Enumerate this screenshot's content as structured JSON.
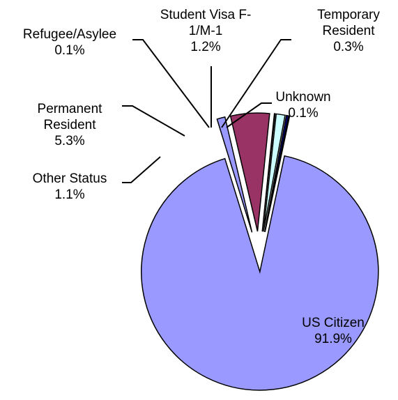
{
  "chart_data": {
    "type": "pie",
    "categories": [
      "US Citizen",
      "Other Status",
      "Permanent Resident",
      "Refugee/Asylee",
      "Student Visa F-1/M-1",
      "Temporary Resident",
      "Unknown"
    ],
    "values": [
      91.9,
      1.1,
      5.3,
      0.1,
      1.2,
      0.3,
      0.1
    ],
    "value_labels": [
      "91.9%",
      "1.1%",
      "5.3%",
      "0.1%",
      "1.2%",
      "0.3%",
      "0.1%"
    ],
    "colors": [
      "#9999ff",
      "#9999ff",
      "#993366",
      "#ffffcc",
      "#ccffff",
      "#000080",
      "#ffffff"
    ]
  }
}
